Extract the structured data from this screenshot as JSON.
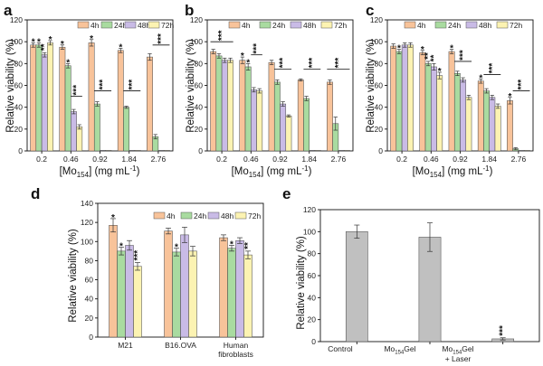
{
  "colors": {
    "4h": "#f8c39a",
    "24h": "#a9dba0",
    "48h": "#c9bbe6",
    "72h": "#fcf3b2",
    "gray": "#c0c0c0"
  },
  "chart_data": [
    {
      "id": "a",
      "panel": "a",
      "type": "bar",
      "ylabel": "Relative viability (%)",
      "xlabel": "[Mo154] (mg mL-1)",
      "xlabel_main": "[Mo",
      "xlabel_sub": "154",
      "xlabel_rest": "] (mg mL",
      "xlabel_sup": "-1",
      "xlabel_end": ")",
      "ylim": [
        0,
        120
      ],
      "yticks": [
        0,
        20,
        40,
        60,
        80,
        100,
        120
      ],
      "categories": [
        "0.2",
        "0.46",
        "0.92",
        "1.84",
        "2.76"
      ],
      "legend": [
        "4h",
        "24h",
        "48h",
        "72h"
      ],
      "series": [
        {
          "name": "4h",
          "values": [
            97,
            95,
            99,
            92,
            86
          ],
          "errors": [
            2,
            2,
            3,
            2,
            3
          ]
        },
        {
          "name": "24h",
          "values": [
            97,
            78,
            43,
            40,
            13
          ],
          "errors": [
            2,
            2,
            2,
            1,
            2
          ]
        },
        {
          "name": "48h",
          "values": [
            88,
            36,
            0.5,
            0.5,
            0.5
          ],
          "errors": [
            2,
            2,
            0,
            0,
            0
          ]
        },
        {
          "name": "72h",
          "values": [
            99,
            22,
            0.5,
            0.5,
            0.5
          ],
          "errors": [
            2,
            2,
            0,
            0,
            0
          ]
        }
      ],
      "stars": [
        {
          "cat": 0,
          "series": 0,
          "text": "*"
        },
        {
          "cat": 0,
          "series": 1,
          "text": "*"
        },
        {
          "cat": 0,
          "series": 2,
          "text": "**"
        },
        {
          "cat": 0,
          "series": 3,
          "text": "*"
        },
        {
          "cat": 1,
          "series": 0,
          "text": "*"
        },
        {
          "cat": 1,
          "series": 1,
          "text": "*"
        },
        {
          "cat": 2,
          "series": 0,
          "text": "*"
        },
        {
          "cat": 3,
          "series": 0,
          "text": "*"
        }
      ],
      "brackets": [
        {
          "cat": 1,
          "from": 2,
          "to": 3,
          "y": 50,
          "text": "***"
        },
        {
          "cat": 2,
          "from": 1,
          "to": 3,
          "y": 55,
          "text": "***"
        },
        {
          "cat": 3,
          "from": 1,
          "to": 3,
          "y": 55,
          "text": "***"
        },
        {
          "cat": 4,
          "from": 1,
          "to": 3,
          "y": 97,
          "text": "***"
        }
      ]
    },
    {
      "id": "b",
      "panel": "b",
      "type": "bar",
      "ylabel": "Relative viability (%)",
      "xlabel": "[Mo154] (mg mL-1)",
      "xlabel_main": "[Mo",
      "xlabel_sub": "154",
      "xlabel_rest": "] (mg mL",
      "xlabel_sup": "-1",
      "xlabel_end": ")",
      "ylim": [
        0,
        120
      ],
      "yticks": [
        0,
        20,
        40,
        60,
        80,
        100,
        120
      ],
      "categories": [
        "0.2",
        "0.46",
        "0.92",
        "1.84",
        "2.76"
      ],
      "legend": [
        "4h",
        "24h",
        "48h",
        "72h"
      ],
      "series": [
        {
          "name": "4h",
          "values": [
            91,
            83,
            81,
            65,
            63
          ],
          "errors": [
            2,
            3,
            2,
            1,
            2
          ]
        },
        {
          "name": "24h",
          "values": [
            87,
            77,
            63,
            48,
            25
          ],
          "errors": [
            2,
            3,
            2,
            2,
            6
          ]
        },
        {
          "name": "48h",
          "values": [
            83,
            56,
            43,
            0.5,
            0.5
          ],
          "errors": [
            2,
            2,
            2,
            0,
            0
          ]
        },
        {
          "name": "72h",
          "values": [
            83,
            55,
            32,
            0.5,
            0.5
          ],
          "errors": [
            2,
            2,
            1,
            0,
            0
          ]
        }
      ],
      "stars": [
        {
          "cat": 1,
          "series": 0,
          "text": "*"
        },
        {
          "cat": 1,
          "series": 1,
          "text": "*"
        }
      ],
      "brackets": [
        {
          "cat": 0,
          "from": 0,
          "to": 3,
          "y": 100,
          "text": "***"
        },
        {
          "cat": 1,
          "from": 2,
          "to": 3,
          "y": 88,
          "text": "***"
        },
        {
          "cat": 2,
          "from": 1,
          "to": 3,
          "y": 75,
          "text": "***"
        },
        {
          "cat": 3,
          "from": 1,
          "to": 3,
          "y": 75,
          "text": "***"
        },
        {
          "cat": 4,
          "from": 0,
          "to": 3,
          "y": 75,
          "text": "***"
        }
      ]
    },
    {
      "id": "c",
      "panel": "c",
      "type": "bar",
      "ylabel": "Relative viability (%)",
      "xlabel": "[Mo154] (mg mL-1)",
      "xlabel_main": "[Mo",
      "xlabel_sub": "154",
      "xlabel_rest": "] (mg mL",
      "xlabel_sup": "-1",
      "xlabel_end": ")",
      "ylim": [
        0,
        120
      ],
      "yticks": [
        0,
        20,
        40,
        60,
        80,
        100,
        120
      ],
      "categories": [
        "0.2",
        "0.46",
        "0.92",
        "1.84",
        "2.76"
      ],
      "legend": [
        "4h",
        "24h",
        "48h",
        "72h"
      ],
      "series": [
        {
          "name": "4h",
          "values": [
            96,
            90,
            91,
            64,
            46
          ],
          "errors": [
            2,
            2,
            2,
            2,
            3
          ]
        },
        {
          "name": "24h",
          "values": [
            91,
            80,
            71,
            55,
            2
          ],
          "errors": [
            2,
            2,
            2,
            2,
            1
          ]
        },
        {
          "name": "48h",
          "values": [
            97,
            77,
            65,
            49,
            0.5
          ],
          "errors": [
            2,
            3,
            2,
            2,
            0
          ]
        },
        {
          "name": "72h",
          "values": [
            97,
            69,
            49,
            41,
            0.5
          ],
          "errors": [
            2,
            3,
            2,
            2,
            0
          ]
        }
      ],
      "stars": [
        {
          "cat": 0,
          "series": 1,
          "text": "*"
        },
        {
          "cat": 1,
          "series": 0,
          "text": "*"
        },
        {
          "cat": 1,
          "series": 1,
          "text": "**"
        },
        {
          "cat": 1,
          "series": 2,
          "text": "**"
        },
        {
          "cat": 1,
          "series": 3,
          "text": "*"
        },
        {
          "cat": 2,
          "series": 0,
          "text": "*"
        },
        {
          "cat": 3,
          "series": 0,
          "text": "*"
        },
        {
          "cat": 4,
          "series": 0,
          "text": "*"
        }
      ],
      "brackets": [
        {
          "cat": 2,
          "from": 1,
          "to": 3,
          "y": 82,
          "text": "***"
        },
        {
          "cat": 3,
          "from": 1,
          "to": 3,
          "y": 70,
          "text": "***"
        },
        {
          "cat": 4,
          "from": 1,
          "to": 3,
          "y": 55,
          "text": "***"
        }
      ]
    },
    {
      "id": "d",
      "panel": "d",
      "type": "bar",
      "ylabel": "Relative viability (%)",
      "ylim": [
        0,
        140
      ],
      "yticks": [
        0,
        20,
        40,
        60,
        80,
        100,
        120,
        140
      ],
      "categories": [
        "M21",
        "B16.OVA",
        "Human fibroblasts"
      ],
      "categories_display": [
        [
          "M21"
        ],
        [
          "B16.OVA"
        ],
        [
          "Human",
          "fibroblasts"
        ]
      ],
      "legend": [
        "4h",
        "24h",
        "48h",
        "72h"
      ],
      "series": [
        {
          "name": "4h",
          "values": [
            117,
            111,
            104
          ],
          "errors": [
            7,
            3,
            3
          ]
        },
        {
          "name": "24h",
          "values": [
            90,
            89,
            93
          ],
          "errors": [
            4,
            4,
            3
          ]
        },
        {
          "name": "48h",
          "values": [
            96,
            107,
            101
          ],
          "errors": [
            5,
            8,
            3
          ]
        },
        {
          "name": "72h",
          "values": [
            74,
            90,
            86
          ],
          "errors": [
            4,
            5,
            4
          ]
        }
      ],
      "stars": [
        {
          "cat": 0,
          "series": 0,
          "text": "*"
        },
        {
          "cat": 0,
          "series": 1,
          "text": "*"
        },
        {
          "cat": 0,
          "series": 3,
          "text": "***"
        },
        {
          "cat": 1,
          "series": 1,
          "text": "*"
        },
        {
          "cat": 2,
          "series": 1,
          "text": "*"
        },
        {
          "cat": 2,
          "series": 3,
          "text": "**"
        }
      ],
      "brackets": []
    },
    {
      "id": "e",
      "panel": "e",
      "type": "bar",
      "ylabel": "Relative viability (%)",
      "ylim": [
        0,
        120
      ],
      "yticks": [
        0,
        20,
        40,
        60,
        80,
        100,
        120
      ],
      "categories": [
        "Control",
        "Mo154Gel",
        "Mo154Gel + Laser"
      ],
      "series": [
        {
          "name": "viability",
          "values": [
            100,
            95,
            2.5
          ],
          "errors": [
            6,
            13,
            1
          ]
        }
      ],
      "stars": [
        {
          "cat": 2,
          "series": 0,
          "text": "***"
        }
      ],
      "brackets": []
    }
  ],
  "xlabels_e": {
    "control": "Control",
    "gel_main": "Mo",
    "gel_sub": "154",
    "gel_rest": "Gel",
    "laser_line2": "+ Laser"
  }
}
